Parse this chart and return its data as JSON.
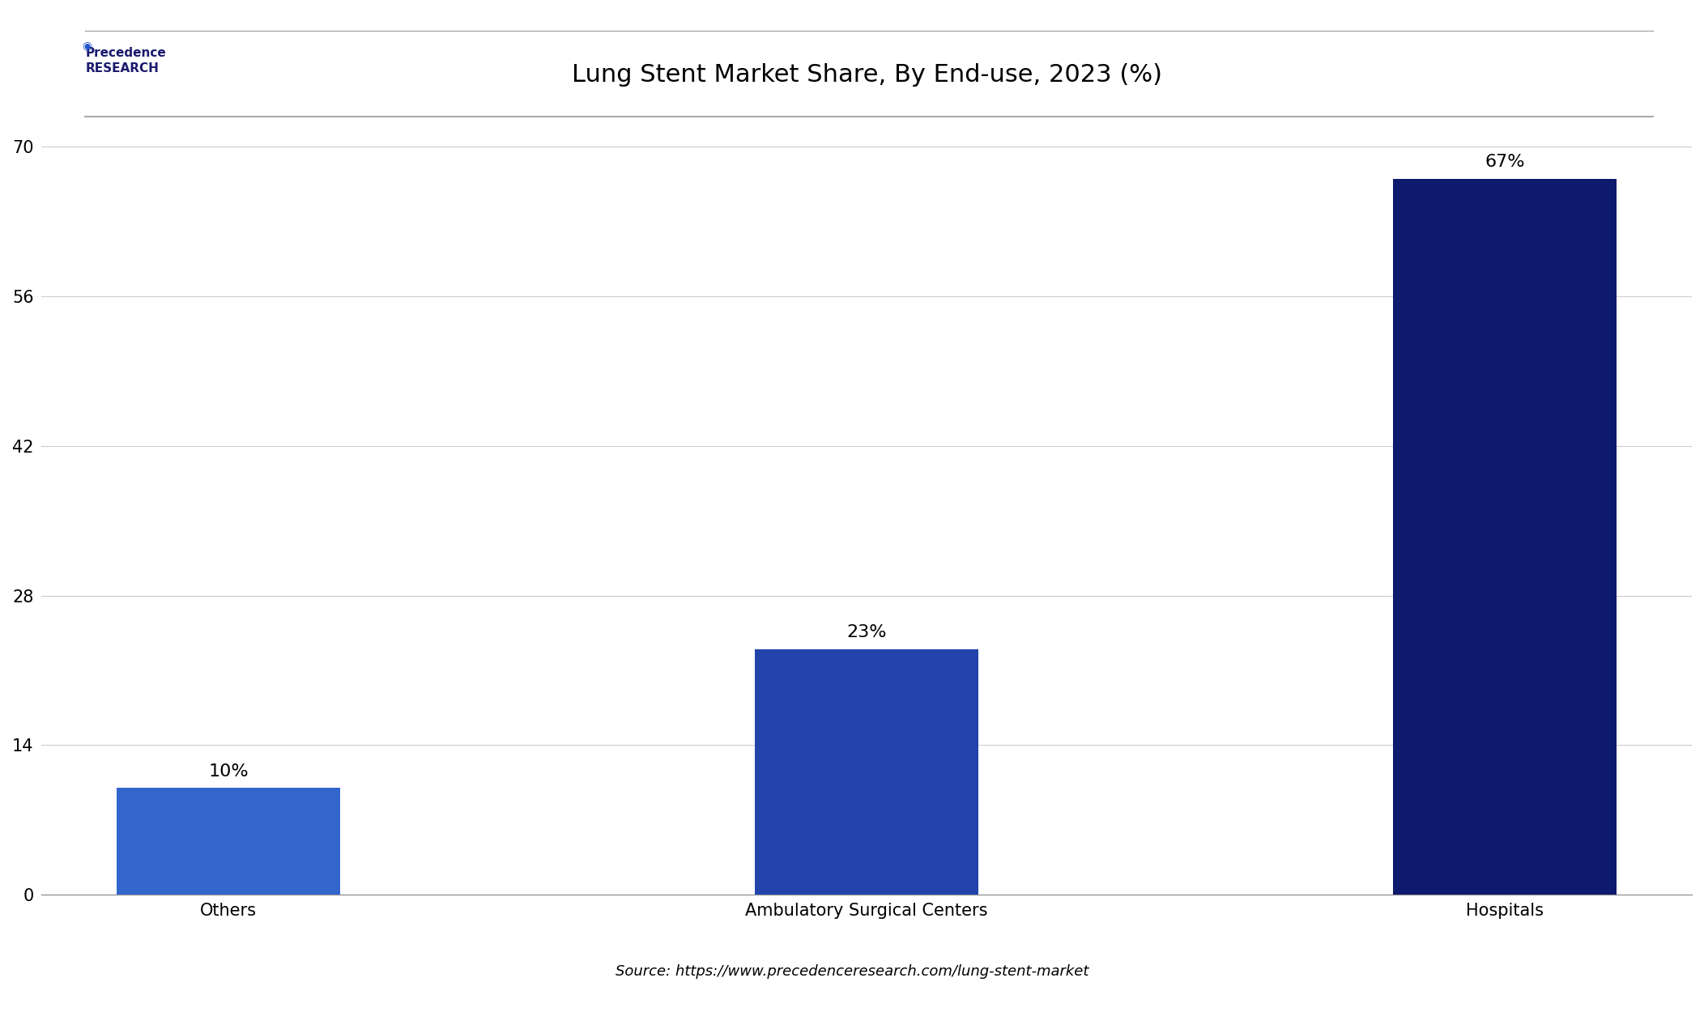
{
  "title": "Lung Stent Market Share, By End-use, 2023 (%)",
  "categories": [
    "Others",
    "Ambulatory Surgical Centers",
    "Hospitals"
  ],
  "values": [
    10,
    23,
    67
  ],
  "bar_colors": [
    "#3366cc",
    "#2244aa",
    "#0d1a6e"
  ],
  "labels": [
    "10%",
    "23%",
    "67%"
  ],
  "yticks": [
    0,
    14,
    28,
    42,
    56,
    70
  ],
  "ylim": [
    0,
    74
  ],
  "source_text": "Source: https://www.precedenceresearch.com/lung-stent-market",
  "background_color": "#ffffff",
  "title_fontsize": 22,
  "label_fontsize": 16,
  "tick_fontsize": 15,
  "source_fontsize": 13
}
